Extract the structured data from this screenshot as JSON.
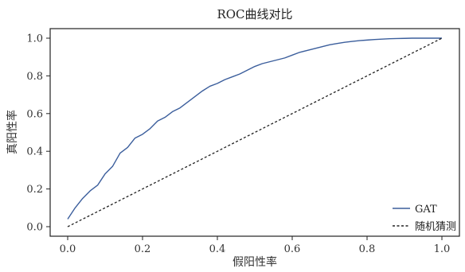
{
  "chart_data": {
    "type": "line",
    "title": "ROC曲线对比",
    "xlabel": "假阳性率",
    "ylabel": "真阳性率",
    "xlim": [
      0.0,
      1.0
    ],
    "ylim": [
      0.0,
      1.0
    ],
    "x_ticks": [
      "0.0",
      "0.2",
      "0.4",
      "0.6",
      "0.8",
      "1.0"
    ],
    "y_ticks": [
      "0.0",
      "0.2",
      "0.4",
      "0.6",
      "0.8",
      "1.0"
    ],
    "grid": false,
    "legend_position": "bottom-right",
    "series": [
      {
        "name": "GAT",
        "color": "#3b5e9c",
        "style": "solid",
        "x": [
          0.0,
          0.02,
          0.04,
          0.06,
          0.08,
          0.1,
          0.12,
          0.14,
          0.16,
          0.18,
          0.2,
          0.22,
          0.24,
          0.26,
          0.28,
          0.3,
          0.32,
          0.34,
          0.36,
          0.38,
          0.4,
          0.42,
          0.44,
          0.46,
          0.48,
          0.5,
          0.52,
          0.54,
          0.56,
          0.58,
          0.6,
          0.62,
          0.64,
          0.66,
          0.68,
          0.7,
          0.72,
          0.74,
          0.76,
          0.78,
          0.8,
          0.82,
          0.84,
          0.86,
          0.88,
          0.9,
          0.92,
          0.94,
          0.96,
          0.98,
          1.0
        ],
        "y": [
          0.04,
          0.1,
          0.15,
          0.19,
          0.22,
          0.28,
          0.32,
          0.39,
          0.42,
          0.47,
          0.49,
          0.52,
          0.56,
          0.58,
          0.61,
          0.63,
          0.66,
          0.69,
          0.72,
          0.745,
          0.76,
          0.78,
          0.795,
          0.81,
          0.83,
          0.85,
          0.865,
          0.875,
          0.885,
          0.895,
          0.91,
          0.925,
          0.935,
          0.945,
          0.955,
          0.965,
          0.972,
          0.978,
          0.983,
          0.987,
          0.99,
          0.993,
          0.995,
          0.997,
          0.998,
          0.999,
          1.0,
          1.0,
          1.0,
          1.0,
          1.0
        ]
      },
      {
        "name": "随机猜测",
        "color": "#222222",
        "style": "dashed",
        "x": [
          0.0,
          1.0
        ],
        "y": [
          0.0,
          1.0
        ]
      }
    ]
  }
}
